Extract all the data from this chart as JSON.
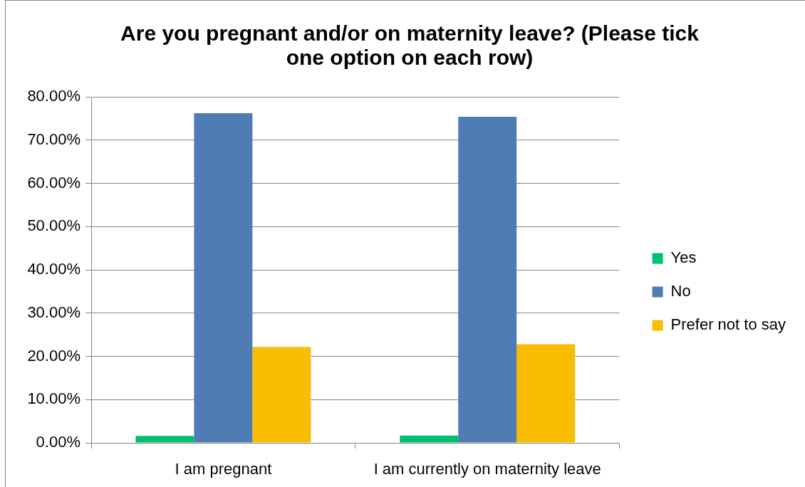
{
  "chart_data": {
    "type": "bar",
    "title": "Are you pregnant and/or on maternity leave? (Please tick one option on each row)",
    "categories": [
      "I am pregnant",
      "I am currently on maternity leave"
    ],
    "series": [
      {
        "name": "Yes",
        "color": "#00bf6f",
        "values": [
          1.6,
          1.7
        ]
      },
      {
        "name": "No",
        "color": "#4f7cb4",
        "values": [
          76.2,
          75.4
        ]
      },
      {
        "name": "Prefer not to say",
        "color": "#f8bd00",
        "values": [
          22.2,
          22.8
        ]
      }
    ],
    "ylim": [
      0,
      80
    ],
    "yticks": [
      {
        "value": 0,
        "label": "0.00%"
      },
      {
        "value": 10,
        "label": "10.00%"
      },
      {
        "value": 20,
        "label": "20.00%"
      },
      {
        "value": 30,
        "label": "30.00%"
      },
      {
        "value": 40,
        "label": "40.00%"
      },
      {
        "value": 50,
        "label": "50.00%"
      },
      {
        "value": 60,
        "label": "60.00%"
      },
      {
        "value": 70,
        "label": "70.00%"
      },
      {
        "value": 80,
        "label": "80.00%"
      }
    ],
    "grid": "y",
    "legend": "right"
  }
}
